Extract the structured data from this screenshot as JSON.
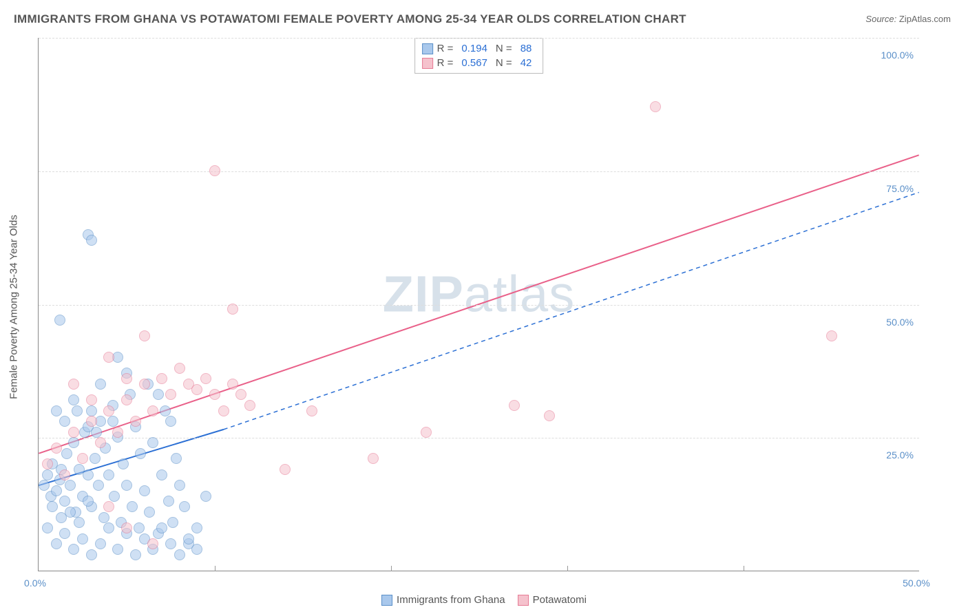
{
  "title": "IMMIGRANTS FROM GHANA VS POTAWATOMI FEMALE POVERTY AMONG 25-34 YEAR OLDS CORRELATION CHART",
  "source": {
    "label": "Source:",
    "name": "ZipAtlas.com"
  },
  "watermark": {
    "bold": "ZIP",
    "rest": "atlas"
  },
  "chart": {
    "type": "scatter",
    "ylabel": "Female Poverty Among 25-34 Year Olds",
    "xlim": [
      0,
      50
    ],
    "ylim": [
      0,
      100
    ],
    "xtick_visible_labels": [
      0,
      50
    ],
    "xtick_marks": [
      10,
      20,
      30,
      40
    ],
    "ytick_labels": [
      25,
      50,
      75,
      100
    ],
    "tick_suffix": ".0%",
    "grid_color": "#dddddd",
    "axis_color": "#888888",
    "background_color": "#ffffff",
    "point_radius": 8,
    "point_opacity": 0.55,
    "series": [
      {
        "name": "Immigrants from Ghana",
        "fill": "#a9c8ec",
        "stroke": "#5a8fc8",
        "R": "0.194",
        "N": "88",
        "trend": {
          "x1": 0,
          "y1": 16,
          "x2": 10.5,
          "y2": 26.5,
          "dash_x2": 50,
          "dash_y2": 71,
          "color": "#2b6fd4",
          "width": 2
        },
        "points": [
          [
            0.3,
            16
          ],
          [
            0.5,
            18
          ],
          [
            0.7,
            14
          ],
          [
            0.8,
            20
          ],
          [
            1.0,
            15
          ],
          [
            1.2,
            17
          ],
          [
            1.3,
            19
          ],
          [
            1.5,
            13
          ],
          [
            1.6,
            22
          ],
          [
            1.8,
            16
          ],
          [
            2.0,
            24
          ],
          [
            2.1,
            11
          ],
          [
            2.3,
            19
          ],
          [
            2.5,
            14
          ],
          [
            2.6,
            26
          ],
          [
            2.8,
            18
          ],
          [
            3.0,
            30
          ],
          [
            3.0,
            12
          ],
          [
            3.2,
            21
          ],
          [
            3.4,
            16
          ],
          [
            3.5,
            28
          ],
          [
            3.7,
            10
          ],
          [
            3.8,
            23
          ],
          [
            4.0,
            18
          ],
          [
            4.2,
            31
          ],
          [
            4.3,
            14
          ],
          [
            4.5,
            25
          ],
          [
            4.7,
            9
          ],
          [
            4.8,
            20
          ],
          [
            5.0,
            16
          ],
          [
            5.2,
            33
          ],
          [
            5.3,
            12
          ],
          [
            5.5,
            27
          ],
          [
            5.7,
            8
          ],
          [
            5.8,
            22
          ],
          [
            6.0,
            15
          ],
          [
            6.2,
            35
          ],
          [
            6.3,
            11
          ],
          [
            6.5,
            24
          ],
          [
            6.8,
            7
          ],
          [
            7.0,
            18
          ],
          [
            7.2,
            30
          ],
          [
            7.4,
            13
          ],
          [
            7.6,
            9
          ],
          [
            7.8,
            21
          ],
          [
            8.0,
            16
          ],
          [
            8.3,
            12
          ],
          [
            8.5,
            5
          ],
          [
            9.0,
            8
          ],
          [
            9.5,
            14
          ],
          [
            1.2,
            47
          ],
          [
            2.8,
            63
          ],
          [
            3.0,
            62
          ],
          [
            4.5,
            40
          ],
          [
            5.0,
            37
          ],
          [
            6.8,
            33
          ],
          [
            7.5,
            28
          ],
          [
            3.5,
            35
          ],
          [
            4.2,
            28
          ],
          [
            2.0,
            32
          ],
          [
            1.0,
            30
          ],
          [
            1.5,
            28
          ],
          [
            2.2,
            30
          ],
          [
            2.8,
            27
          ],
          [
            3.3,
            26
          ],
          [
            0.5,
            8
          ],
          [
            1.0,
            5
          ],
          [
            1.5,
            7
          ],
          [
            2.0,
            4
          ],
          [
            2.5,
            6
          ],
          [
            3.0,
            3
          ],
          [
            3.5,
            5
          ],
          [
            4.0,
            8
          ],
          [
            4.5,
            4
          ],
          [
            5.0,
            7
          ],
          [
            5.5,
            3
          ],
          [
            6.0,
            6
          ],
          [
            6.5,
            4
          ],
          [
            7.0,
            8
          ],
          [
            7.5,
            5
          ],
          [
            8.0,
            3
          ],
          [
            8.5,
            6
          ],
          [
            9.0,
            4
          ],
          [
            0.8,
            12
          ],
          [
            1.3,
            10
          ],
          [
            1.8,
            11
          ],
          [
            2.3,
            9
          ],
          [
            2.8,
            13
          ]
        ]
      },
      {
        "name": "Potawatomi",
        "fill": "#f5c2cd",
        "stroke": "#e67a94",
        "R": "0.567",
        "N": "42",
        "trend": {
          "x1": 0,
          "y1": 22,
          "x2": 50,
          "y2": 78,
          "color": "#e96089",
          "width": 2
        },
        "points": [
          [
            0.5,
            20
          ],
          [
            1.0,
            23
          ],
          [
            1.5,
            18
          ],
          [
            2.0,
            26
          ],
          [
            2.5,
            21
          ],
          [
            3.0,
            28
          ],
          [
            3.5,
            24
          ],
          [
            4.0,
            30
          ],
          [
            4.5,
            26
          ],
          [
            5.0,
            32
          ],
          [
            5.5,
            28
          ],
          [
            6.0,
            35
          ],
          [
            6.5,
            30
          ],
          [
            7.0,
            36
          ],
          [
            7.5,
            33
          ],
          [
            8.0,
            38
          ],
          [
            8.5,
            35
          ],
          [
            9.0,
            34
          ],
          [
            9.5,
            36
          ],
          [
            10.0,
            33
          ],
          [
            10.5,
            30
          ],
          [
            11.0,
            35
          ],
          [
            11.5,
            33
          ],
          [
            12.0,
            31
          ],
          [
            11.0,
            49
          ],
          [
            10.0,
            75
          ],
          [
            14.0,
            19
          ],
          [
            15.5,
            30
          ],
          [
            19.0,
            21
          ],
          [
            22.0,
            26
          ],
          [
            27.0,
            31
          ],
          [
            29.0,
            29
          ],
          [
            35.0,
            87
          ],
          [
            45.0,
            44
          ],
          [
            2.0,
            35
          ],
          [
            3.0,
            32
          ],
          [
            4.0,
            40
          ],
          [
            5.0,
            36
          ],
          [
            6.0,
            44
          ],
          [
            4.0,
            12
          ],
          [
            5.0,
            8
          ],
          [
            6.5,
            5
          ]
        ]
      }
    ]
  },
  "legend_labels": {
    "r_label": "R =",
    "n_label": "N ="
  },
  "bottom_legend": [
    "Immigrants from Ghana",
    "Potawatomi"
  ]
}
